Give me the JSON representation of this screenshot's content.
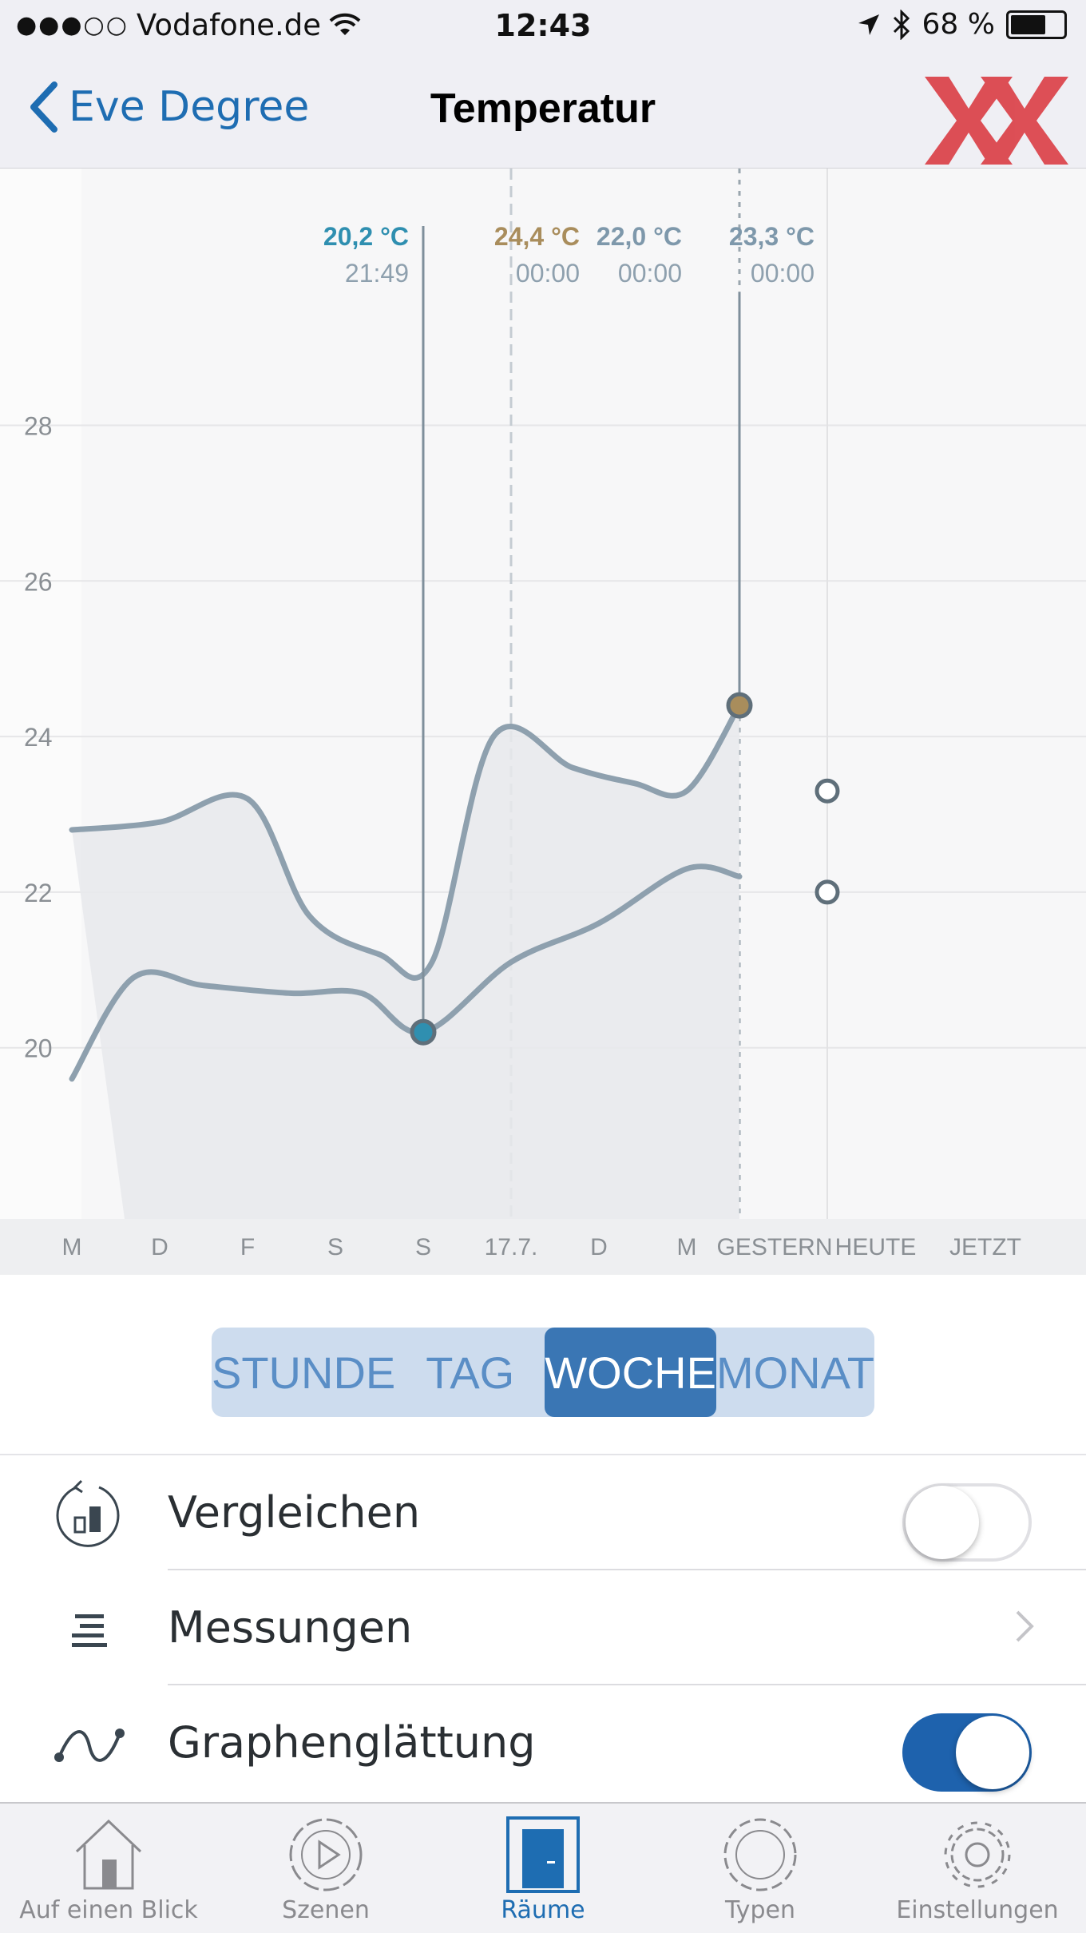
{
  "status_bar": {
    "signal": "●●●○○",
    "carrier": "Vodafone.de",
    "time": "12:43",
    "battery": "68 %",
    "battery_level": 0.68
  },
  "nav": {
    "back_label": "Eve Degree",
    "title": "Temperatur"
  },
  "chart_data": {
    "type": "line",
    "x_labels": [
      "M",
      "D",
      "F",
      "S",
      "S",
      "17.7.",
      "D",
      "M",
      "GESTERN",
      "HEUTE",
      "JETZT"
    ],
    "y_ticks": [
      20,
      22,
      24,
      26,
      28
    ],
    "ylim": [
      17.8,
      31.3
    ],
    "series": [
      {
        "points": [
          [
            0.0,
            22.8
          ],
          [
            1.0,
            22.9
          ],
          [
            2.0,
            23.2
          ],
          [
            2.7,
            21.7
          ],
          [
            3.5,
            21.2
          ],
          [
            4.1,
            21.1
          ],
          [
            4.8,
            24.0
          ],
          [
            5.7,
            23.6
          ],
          [
            6.4,
            23.4
          ],
          [
            7.0,
            23.3
          ],
          [
            7.6,
            24.4
          ]
        ]
      },
      {
        "points": [
          [
            0.0,
            19.6
          ],
          [
            0.7,
            20.9
          ],
          [
            1.5,
            20.8
          ],
          [
            2.5,
            20.7
          ],
          [
            3.3,
            20.7
          ],
          [
            4.0,
            20.2
          ],
          [
            5.0,
            21.1
          ],
          [
            6.0,
            21.6
          ],
          [
            7.0,
            22.3
          ],
          [
            7.6,
            22.2
          ]
        ]
      }
    ],
    "markers": [
      {
        "label": "20,2 °C",
        "time": "21:49",
        "x": 4.0,
        "y": 20.2,
        "color": "#2f8fb0"
      },
      {
        "label": "24,4 °C",
        "time": "00:00",
        "x": 7.6,
        "y": 24.4,
        "color": "#a98d5c"
      },
      {
        "label": "22,0 °C",
        "time": "00:00",
        "x": 8.6,
        "y": 22.0,
        "color": "#7e98ab"
      },
      {
        "label": "23,3 °C",
        "time": "00:00",
        "x": 8.6,
        "y": 23.3,
        "color": "#7e98ab"
      }
    ],
    "colors": {
      "line": "#8ea0ae",
      "fill": "#e7e9ec",
      "label_time": "#8ea0ae"
    }
  },
  "range_selector": {
    "options": [
      "STUNDE",
      "TAG",
      "WOCHE",
      "MONAT"
    ],
    "selected": "WOCHE"
  },
  "settings": {
    "compare_label": "Vergleichen",
    "compare_on": false,
    "measurements_label": "Messungen",
    "smoothing_label": "Graphenglättung",
    "smoothing_on": true
  },
  "tabbar": {
    "tabs": [
      {
        "label": "Auf einen Blick",
        "icon": "house-icon"
      },
      {
        "label": "Szenen",
        "icon": "scene-play-icon"
      },
      {
        "label": "Räume",
        "icon": "door-icon"
      },
      {
        "label": "Typen",
        "icon": "types-ring-icon"
      },
      {
        "label": "Einstellungen",
        "icon": "gear-icon"
      }
    ],
    "active": "Räume"
  },
  "colors": {
    "accent": "#1e6db2",
    "toggle_on": "#1e62ad",
    "segment_bg": "#cddcee",
    "segment_active": "#3a76b4"
  }
}
